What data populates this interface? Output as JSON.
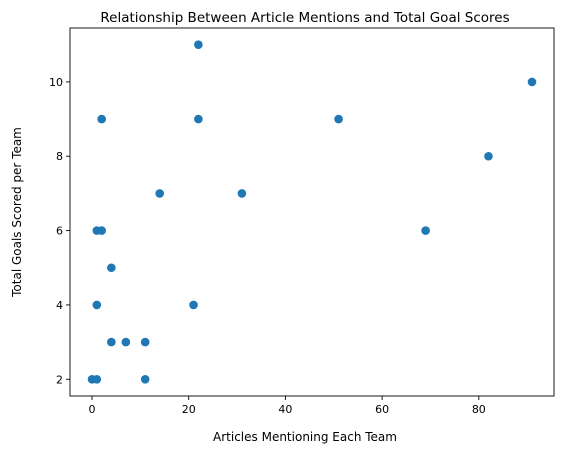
{
  "chart_data": {
    "type": "scatter",
    "title": "Relationship Between Article Mentions and Total Goal Scores",
    "xlabel": "Articles Mentioning Each Team",
    "ylabel": "Total Goals Scored per Team",
    "xlim": [
      -4.55,
      95.55
    ],
    "ylim": [
      1.55,
      11.45
    ],
    "xticks": [
      0,
      20,
      40,
      60,
      80
    ],
    "yticks": [
      2,
      4,
      6,
      8,
      10
    ],
    "grid": false,
    "marker_color": "#1f77b4",
    "points": [
      {
        "x": 22,
        "y": 11
      },
      {
        "x": 91,
        "y": 10
      },
      {
        "x": 2,
        "y": 9
      },
      {
        "x": 22,
        "y": 9
      },
      {
        "x": 51,
        "y": 9
      },
      {
        "x": 82,
        "y": 8
      },
      {
        "x": 14,
        "y": 7
      },
      {
        "x": 31,
        "y": 7
      },
      {
        "x": 1,
        "y": 6
      },
      {
        "x": 2,
        "y": 6
      },
      {
        "x": 69,
        "y": 6
      },
      {
        "x": 4,
        "y": 5
      },
      {
        "x": 1,
        "y": 4
      },
      {
        "x": 21,
        "y": 4
      },
      {
        "x": 4,
        "y": 3
      },
      {
        "x": 7,
        "y": 3
      },
      {
        "x": 11,
        "y": 3
      },
      {
        "x": 0,
        "y": 2
      },
      {
        "x": 1,
        "y": 2
      },
      {
        "x": 11,
        "y": 2
      }
    ]
  }
}
